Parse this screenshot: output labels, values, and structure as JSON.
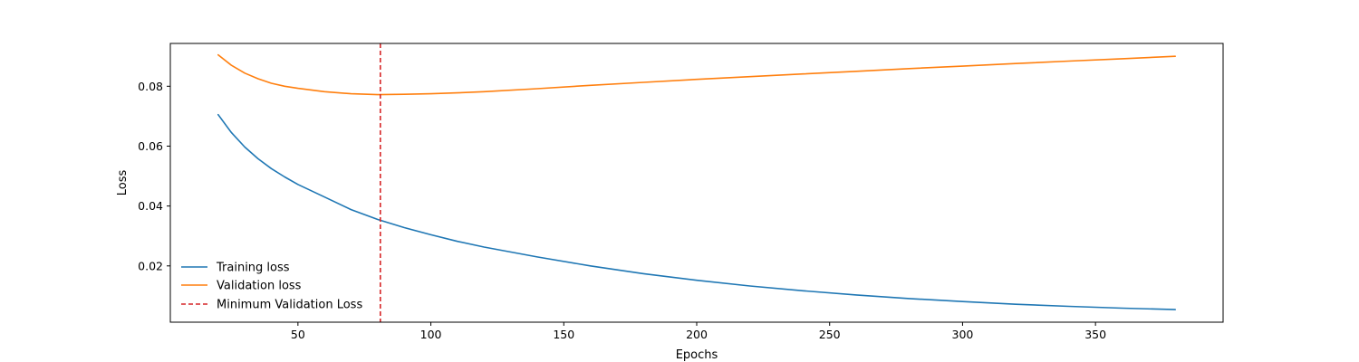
{
  "chart_data": {
    "type": "line",
    "title": "",
    "xlabel": "Epochs",
    "ylabel": "Loss",
    "xlim": [
      2,
      398
    ],
    "ylim": [
      0.0012,
      0.0943
    ],
    "xticks": [
      50,
      100,
      150,
      200,
      250,
      300,
      350
    ],
    "yticks": [
      0.02,
      0.04,
      0.06,
      0.08
    ],
    "xtick_labels": [
      "50",
      "100",
      "150",
      "200",
      "250",
      "300",
      "350"
    ],
    "ytick_labels": [
      "0.02",
      "0.04",
      "0.06",
      "0.08"
    ],
    "grid": false,
    "legend_position": "lower-left",
    "x": [
      20,
      25,
      30,
      35,
      40,
      45,
      50,
      60,
      70,
      80,
      90,
      100,
      110,
      120,
      140,
      160,
      180,
      200,
      220,
      240,
      260,
      280,
      300,
      320,
      340,
      360,
      380
    ],
    "series": [
      {
        "name": "Training loss",
        "color": "#1f77b4",
        "values": [
          0.0705,
          0.0645,
          0.0597,
          0.0558,
          0.0525,
          0.0497,
          0.0472,
          0.043,
          0.0388,
          0.0355,
          0.0328,
          0.0304,
          0.0282,
          0.0263,
          0.023,
          0.02,
          0.0174,
          0.0152,
          0.0133,
          0.0117,
          0.0103,
          0.0091,
          0.0081,
          0.0072,
          0.0065,
          0.0059,
          0.0054
        ]
      },
      {
        "name": "Validation loss",
        "color": "#ff7f0e",
        "values": [
          0.0905,
          0.087,
          0.0844,
          0.0825,
          0.081,
          0.08,
          0.0793,
          0.0782,
          0.0775,
          0.0772,
          0.0773,
          0.0775,
          0.0778,
          0.0782,
          0.0792,
          0.0803,
          0.0813,
          0.0823,
          0.0832,
          0.0841,
          0.085,
          0.0859,
          0.0867,
          0.0876,
          0.0884,
          0.0892,
          0.09
        ]
      }
    ],
    "vline": {
      "name": "Minimum Validation Loss",
      "x": 81,
      "color": "#d62728",
      "style": "dashed"
    }
  }
}
